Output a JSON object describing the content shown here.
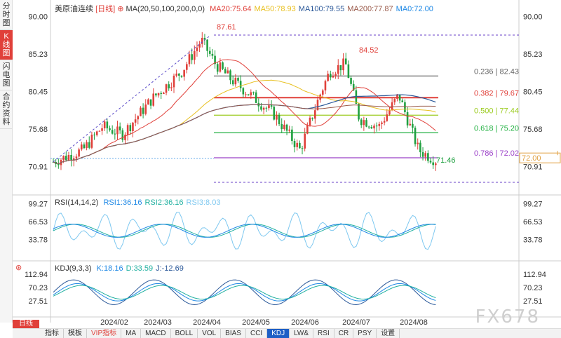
{
  "left_tabs": [
    "分时图",
    "K线图",
    "闪电图",
    "合约资料"
  ],
  "main": {
    "title": "美原油连续",
    "period": "[日线]",
    "ma_label": "MA(20,50,100,200,0,0)",
    "ma": [
      {
        "label": "MA20:75.64",
        "color": "#e0403a"
      },
      {
        "label": "MA50:78.93",
        "color": "#e8c020"
      },
      {
        "label": "MA100:79.55",
        "color": "#2d5a9a"
      },
      {
        "label": "MA200:77.87",
        "color": "#9a5a4a"
      },
      {
        "label": "MA0:72.00",
        "color": "#1e88e5"
      }
    ],
    "y_ticks": [
      "90.00",
      "85.23",
      "80.45",
      "75.68",
      "70.91"
    ],
    "high_label": "87.61",
    "high2_label": "84.52",
    "low_label": "71.46",
    "price_box": "72.00",
    "fib_levels": [
      {
        "label": "0.236 | 82.43",
        "value": 82.43,
        "color": "#666666"
      },
      {
        "label": "0.382 | 79.67",
        "value": 79.67,
        "color": "#e0403a"
      },
      {
        "label": "0.500 | 77.44",
        "value": 77.44,
        "color": "#9ccc20"
      },
      {
        "label": "0.618 | 75.20",
        "value": 75.2,
        "color": "#20b040"
      },
      {
        "label": "0.786 | 72.02",
        "value": 72.02,
        "color": "#9b40c8"
      }
    ]
  },
  "rsi": {
    "label": "RSI(14,14,2)",
    "values": [
      {
        "label": "RSI1:36.16",
        "color": "#1e88e5"
      },
      {
        "label": "RSI2:36.16",
        "color": "#20b0a0"
      },
      {
        "label": "RSI3:8.03",
        "color": "#7ec8f0"
      }
    ],
    "y_ticks": [
      "99.27",
      "66.53",
      "33.78"
    ]
  },
  "kdj": {
    "label": "KDJ(9,3,3)",
    "values": [
      {
        "label": "K:18.16",
        "color": "#1e88e5"
      },
      {
        "label": "D:33.59",
        "color": "#20b0a0"
      },
      {
        "label": "J:-12.69",
        "color": "#2d5a9a"
      }
    ],
    "y_ticks": [
      "112.94",
      "70.23",
      "27.51"
    ]
  },
  "x_labels": [
    "2024/02",
    "2024/03",
    "2024/04",
    "2024/05",
    "2024/06",
    "2024/07",
    "2024/08"
  ],
  "footer": {
    "period_button": "日线",
    "tabs": [
      "指标",
      "模板",
      "VIP指标",
      "MA",
      "MACD",
      "BOLL",
      "VOL",
      "BIAS",
      "CCI",
      "KDJ",
      "LW&",
      "RSI",
      "CR",
      "PSY",
      "设置"
    ],
    "active": "KDJ"
  },
  "watermark": "FX678"
}
